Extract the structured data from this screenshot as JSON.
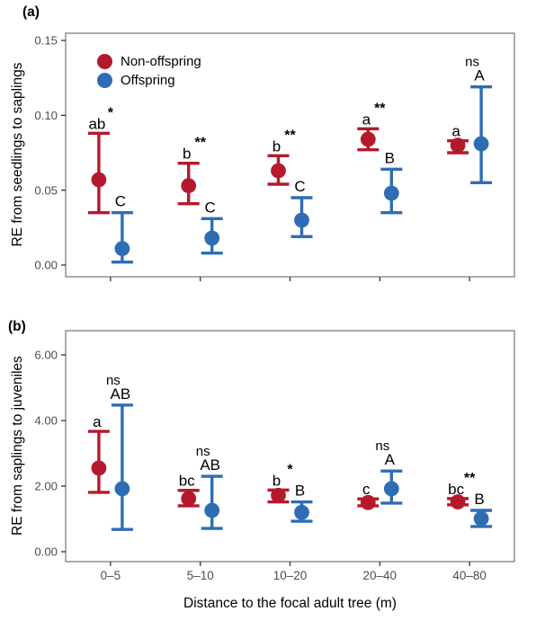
{
  "figure": {
    "background": "#ffffff"
  },
  "axis": {
    "x_title": "Distance to the focal adult tree (m)",
    "categories": [
      "0–5",
      "5–10",
      "10–20",
      "20–40",
      "40–80"
    ]
  },
  "legend": {
    "position": "top-left-inside-panel-a",
    "items": [
      {
        "label": "Non-offspring",
        "color": "#b6192c"
      },
      {
        "label": "Offspring",
        "color": "#2e6db4"
      }
    ]
  },
  "chart_data": [
    {
      "type": "errorbar",
      "panel_tag": "(a)",
      "ylabel": "RE from seedlings to saplings",
      "ylim": [
        -0.008,
        0.155
      ],
      "yticks": [
        0,
        0.05,
        0.1,
        0.15
      ],
      "ytick_labels": [
        "0.00",
        "0.05",
        "0.10",
        "0.15"
      ],
      "categories": [
        "0–5",
        "5–10",
        "10–20",
        "20–40",
        "40–80"
      ],
      "grid": "off",
      "series": [
        {
          "name": "Non-offspring",
          "color": "#b6192c",
          "points": [
            {
              "mean": 0.057,
              "lo": 0.035,
              "hi": 0.088,
              "letter": "ab"
            },
            {
              "mean": 0.053,
              "lo": 0.041,
              "hi": 0.068,
              "letter": "b"
            },
            {
              "mean": 0.063,
              "lo": 0.054,
              "hi": 0.073,
              "letter": "b"
            },
            {
              "mean": 0.084,
              "lo": 0.077,
              "hi": 0.091,
              "letter": "a"
            },
            {
              "mean": 0.08,
              "lo": 0.075,
              "hi": 0.083,
              "letter": "a"
            }
          ]
        },
        {
          "name": "Offspring",
          "color": "#2e6db4",
          "points": [
            {
              "mean": 0.011,
              "lo": 0.002,
              "hi": 0.035,
              "letter": "C"
            },
            {
              "mean": 0.018,
              "lo": 0.008,
              "hi": 0.031,
              "letter": "C"
            },
            {
              "mean": 0.03,
              "lo": 0.019,
              "hi": 0.045,
              "letter": "C"
            },
            {
              "mean": 0.048,
              "lo": 0.035,
              "hi": 0.064,
              "letter": "B"
            },
            {
              "mean": 0.081,
              "lo": 0.055,
              "hi": 0.119,
              "letter": "A"
            }
          ]
        }
      ],
      "significance": [
        {
          "text": "*",
          "anchor": "Non-offspring"
        },
        {
          "text": "**",
          "anchor": "Non-offspring"
        },
        {
          "text": "**",
          "anchor": "Non-offspring"
        },
        {
          "text": "**",
          "anchor": "Non-offspring"
        },
        {
          "text": "ns",
          "anchor": "Offspring"
        }
      ]
    },
    {
      "type": "errorbar",
      "panel_tag": "(b)",
      "ylabel": "RE from saplings to juveniles",
      "ylim": [
        -0.3,
        6.74
      ],
      "yticks": [
        0,
        2,
        4,
        6
      ],
      "ytick_labels": [
        "0.00",
        "2.00",
        "4.00",
        "6.00"
      ],
      "categories": [
        "0–5",
        "5–10",
        "10–20",
        "20–40",
        "40–80"
      ],
      "grid": "off",
      "series": [
        {
          "name": "Non-offspring",
          "color": "#b6192c",
          "points": [
            {
              "mean": 2.55,
              "lo": 1.81,
              "hi": 3.67,
              "letter": "a"
            },
            {
              "mean": 1.62,
              "lo": 1.4,
              "hi": 1.87,
              "letter": "bc"
            },
            {
              "mean": 1.72,
              "lo": 1.52,
              "hi": 1.88,
              "letter": "b"
            },
            {
              "mean": 1.5,
              "lo": 1.4,
              "hi": 1.61,
              "letter": "c"
            },
            {
              "mean": 1.52,
              "lo": 1.43,
              "hi": 1.62,
              "letter": "bc"
            }
          ]
        },
        {
          "name": "Offspring",
          "color": "#2e6db4",
          "points": [
            {
              "mean": 1.92,
              "lo": 0.68,
              "hi": 4.47,
              "letter": "AB"
            },
            {
              "mean": 1.26,
              "lo": 0.71,
              "hi": 2.3,
              "letter": "AB"
            },
            {
              "mean": 1.2,
              "lo": 0.93,
              "hi": 1.52,
              "letter": "B"
            },
            {
              "mean": 1.92,
              "lo": 1.48,
              "hi": 2.46,
              "letter": "A"
            },
            {
              "mean": 1.01,
              "lo": 0.77,
              "hi": 1.26,
              "letter": "B"
            }
          ]
        }
      ],
      "significance": [
        {
          "text": "ns",
          "anchor": "Offspring"
        },
        {
          "text": "ns",
          "anchor": "Offspring"
        },
        {
          "text": "*",
          "anchor": "Non-offspring"
        },
        {
          "text": "ns",
          "anchor": "Offspring"
        },
        {
          "text": "**",
          "anchor": "Non-offspring"
        }
      ]
    }
  ]
}
